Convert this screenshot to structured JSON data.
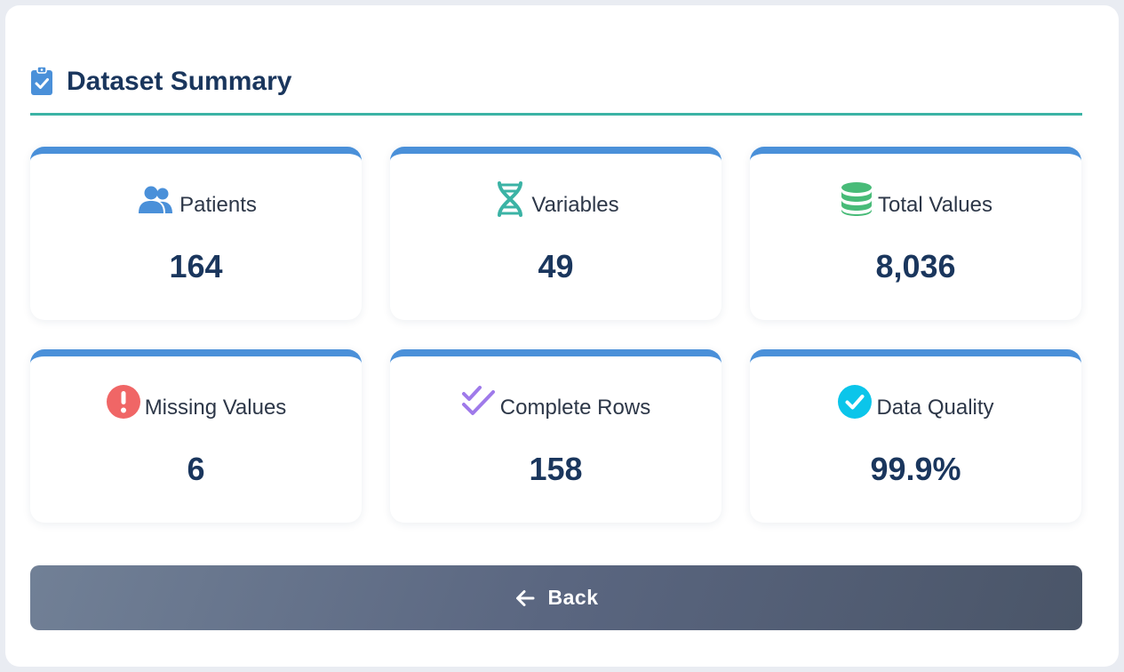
{
  "header": {
    "title": "Dataset Summary",
    "icon": "clipboard-check-icon"
  },
  "colors": {
    "title": "#1a365d",
    "divider": "#3bb3a5",
    "card_accent": "#4a90d9",
    "patients_icon": "#4a90d9",
    "variables_icon": "#3bb3a5",
    "total_values_icon": "#48bb78",
    "missing_values_icon": "#f06666",
    "complete_rows_icon": "#9f7aea",
    "data_quality_icon": "#0bc5ea"
  },
  "stats": [
    {
      "label": "Patients",
      "value": "164",
      "icon": "users-icon"
    },
    {
      "label": "Variables",
      "value": "49",
      "icon": "dna-icon"
    },
    {
      "label": "Total Values",
      "value": "8,036",
      "icon": "database-icon"
    },
    {
      "label": "Missing Values",
      "value": "6",
      "icon": "exclamation-circle-icon"
    },
    {
      "label": "Complete Rows",
      "value": "158",
      "icon": "double-check-icon"
    },
    {
      "label": "Data Quality",
      "value": "99.9%",
      "icon": "check-circle-icon"
    }
  ],
  "back_button": {
    "label": "Back",
    "icon": "arrow-left-icon"
  }
}
